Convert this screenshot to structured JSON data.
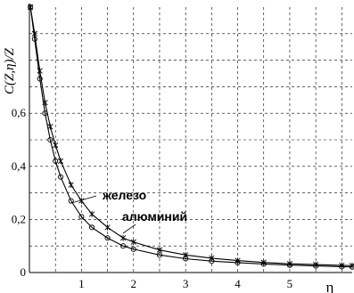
{
  "chart_data": {
    "type": "line",
    "ylabel": "C(Z,η)/Z",
    "xlabel": "η",
    "xlim": [
      0,
      6.2
    ],
    "ylim": [
      0,
      1.0
    ],
    "x_ticks": [
      {
        "value": 1,
        "label": "1"
      },
      {
        "value": 2,
        "label": "2"
      },
      {
        "value": 3,
        "label": "3"
      },
      {
        "value": 4,
        "label": "4"
      },
      {
        "value": 5,
        "label": "5"
      }
    ],
    "y_ticks": [
      {
        "value": 0,
        "label": "0"
      },
      {
        "value": 0.2,
        "label": "0,2"
      },
      {
        "value": 0.4,
        "label": "0,4"
      },
      {
        "value": 0.6,
        "label": "0,6"
      }
    ],
    "grid": true,
    "series": [
      {
        "name": "железо",
        "marker": "star",
        "x": [
          0.02,
          0.1,
          0.2,
          0.3,
          0.4,
          0.5,
          0.6,
          0.8,
          1.0,
          1.2,
          1.5,
          1.8,
          2.0,
          2.5,
          3.0,
          3.5,
          4.0,
          4.5,
          5.0,
          5.5,
          6.0,
          6.2
        ],
        "values": [
          1.0,
          0.9,
          0.76,
          0.64,
          0.55,
          0.48,
          0.42,
          0.33,
          0.27,
          0.22,
          0.17,
          0.13,
          0.115,
          0.085,
          0.066,
          0.054,
          0.045,
          0.038,
          0.033,
          0.03,
          0.027,
          0.026
        ]
      },
      {
        "name": "алюминий",
        "marker": "circle",
        "x": [
          0.02,
          0.1,
          0.2,
          0.3,
          0.4,
          0.5,
          0.6,
          0.8,
          1.0,
          1.2,
          1.5,
          1.8,
          2.0,
          2.5,
          3.0,
          3.5,
          4.0,
          4.5,
          5.0,
          5.5,
          6.0,
          6.2
        ],
        "values": [
          1.0,
          0.88,
          0.73,
          0.6,
          0.5,
          0.42,
          0.36,
          0.27,
          0.21,
          0.17,
          0.13,
          0.1,
          0.088,
          0.066,
          0.052,
          0.043,
          0.037,
          0.032,
          0.028,
          0.025,
          0.022,
          0.021
        ]
      }
    ],
    "annotations": [
      "железо",
      "алюминий"
    ]
  }
}
